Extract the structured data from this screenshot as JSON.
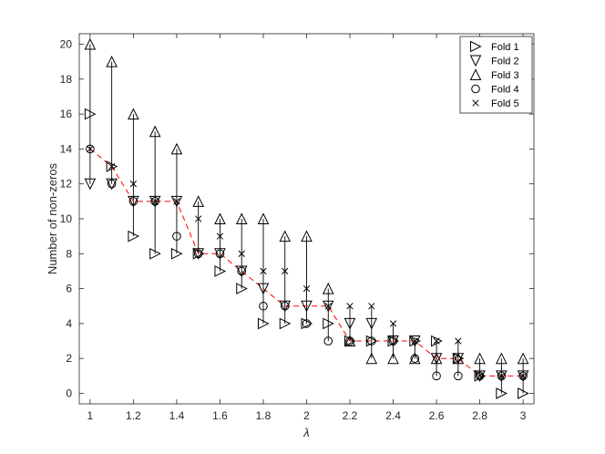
{
  "chart_data": {
    "type": "scatter",
    "xlabel": "λ",
    "ylabel": "Number of non-zeros",
    "xlim": [
      0.95,
      3.05
    ],
    "ylim": [
      -0.6,
      20.6
    ],
    "x_ticks": [
      1,
      1.2,
      1.4,
      1.6,
      1.8,
      2,
      2.2,
      2.4,
      2.6,
      2.8,
      3
    ],
    "x_tick_labels": [
      "1",
      "1.2",
      "1.4",
      "1.6",
      "1.8",
      "2",
      "2.2",
      "2.4",
      "2.6",
      "2.8",
      "3"
    ],
    "y_ticks": [
      0,
      2,
      4,
      6,
      8,
      10,
      12,
      14,
      16,
      18,
      20
    ],
    "y_tick_labels": [
      "0",
      "2",
      "4",
      "6",
      "8",
      "10",
      "12",
      "14",
      "16",
      "18",
      "20"
    ],
    "grid": false,
    "legend_position": "top-right",
    "x": [
      1,
      1.1,
      1.2,
      1.3,
      1.4,
      1.5,
      1.6,
      1.7,
      1.8,
      1.9,
      2,
      2.1,
      2.2,
      2.3,
      2.4,
      2.5,
      2.6,
      2.7,
      2.8,
      2.9,
      3
    ],
    "series": [
      {
        "name": "Fold 1",
        "marker": "triangle-right",
        "values": [
          16,
          13,
          9,
          8,
          8,
          8,
          7,
          6,
          4,
          4,
          4,
          4,
          3,
          3,
          3,
          3,
          3,
          2,
          1,
          0,
          0
        ]
      },
      {
        "name": "Fold 2",
        "marker": "triangle-down",
        "values": [
          12,
          12,
          11,
          11,
          11,
          8,
          8,
          7,
          6,
          5,
          5,
          5,
          4,
          4,
          3,
          3,
          2,
          2,
          1,
          1,
          1
        ]
      },
      {
        "name": "Fold 3",
        "marker": "triangle-up",
        "values": [
          20,
          19,
          16,
          15,
          14,
          11,
          10,
          10,
          10,
          9,
          9,
          6,
          3,
          2,
          2,
          2,
          2,
          2,
          2,
          2,
          2
        ]
      },
      {
        "name": "Fold 4",
        "marker": "circle",
        "values": [
          14,
          12,
          11,
          11,
          9,
          8,
          8,
          7,
          5,
          5,
          4,
          3,
          3,
          3,
          3,
          2,
          1,
          1,
          1,
          1,
          1
        ]
      },
      {
        "name": "Fold 5",
        "marker": "x",
        "values": [
          14,
          13,
          12,
          11,
          11,
          10,
          9,
          8,
          7,
          7,
          6,
          5,
          5,
          5,
          4,
          3,
          3,
          3,
          1,
          1,
          1
        ]
      }
    ],
    "mean_line": {
      "color": "#ff0000",
      "style": "dashed",
      "values": [
        14,
        13,
        11,
        11,
        11,
        8,
        8,
        7,
        6,
        5,
        5,
        5,
        3,
        3,
        3,
        3,
        2,
        2,
        1,
        1,
        1
      ]
    }
  }
}
